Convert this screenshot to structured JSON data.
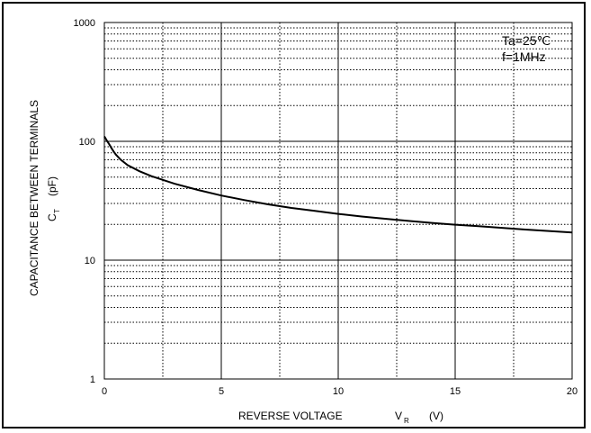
{
  "chart_data": {
    "type": "line",
    "title": "",
    "xlabel": {
      "main": "REVERSE VOLTAGE",
      "symbol": "V",
      "subscript": "R",
      "unit": "(V)"
    },
    "ylabel": {
      "line1": "CAPACITANCE BETWEEN TERMINALS",
      "symbol": "C",
      "subscript": "T",
      "unit": "(pF)"
    },
    "xlim": [
      0,
      20
    ],
    "ylim": [
      1,
      1000
    ],
    "yscale": "log",
    "grid": true,
    "x_ticks": [
      "0",
      "5",
      "10",
      "15",
      "20"
    ],
    "y_ticks": [
      "1",
      "10",
      "100",
      "1000"
    ],
    "annotations": [
      "Ta=25℃",
      "f=1MHz"
    ],
    "series": [
      {
        "x": [
          0.0,
          0.1,
          0.2,
          0.3,
          0.4,
          0.5,
          0.7,
          1.0,
          1.5,
          2.0,
          3.0,
          4.0,
          5.0,
          6.0,
          7.0,
          8.0,
          9.0,
          10.0,
          11.0,
          12.0,
          13.0,
          14.0,
          15.0,
          16.0,
          17.0,
          18.0,
          19.0,
          20.0
        ],
        "y": [
          110,
          102,
          95,
          88,
          82,
          77,
          70,
          63,
          56,
          51,
          44,
          39,
          35,
          32,
          29.5,
          27.5,
          26,
          24.5,
          23.3,
          22.3,
          21.4,
          20.6,
          19.9,
          19.3,
          18.7,
          18.1,
          17.6,
          17.1
        ]
      }
    ],
    "colors": {
      "line": "#000000",
      "grid_major": "#000000",
      "grid_minor": "#000000",
      "background": "#ffffff"
    }
  }
}
